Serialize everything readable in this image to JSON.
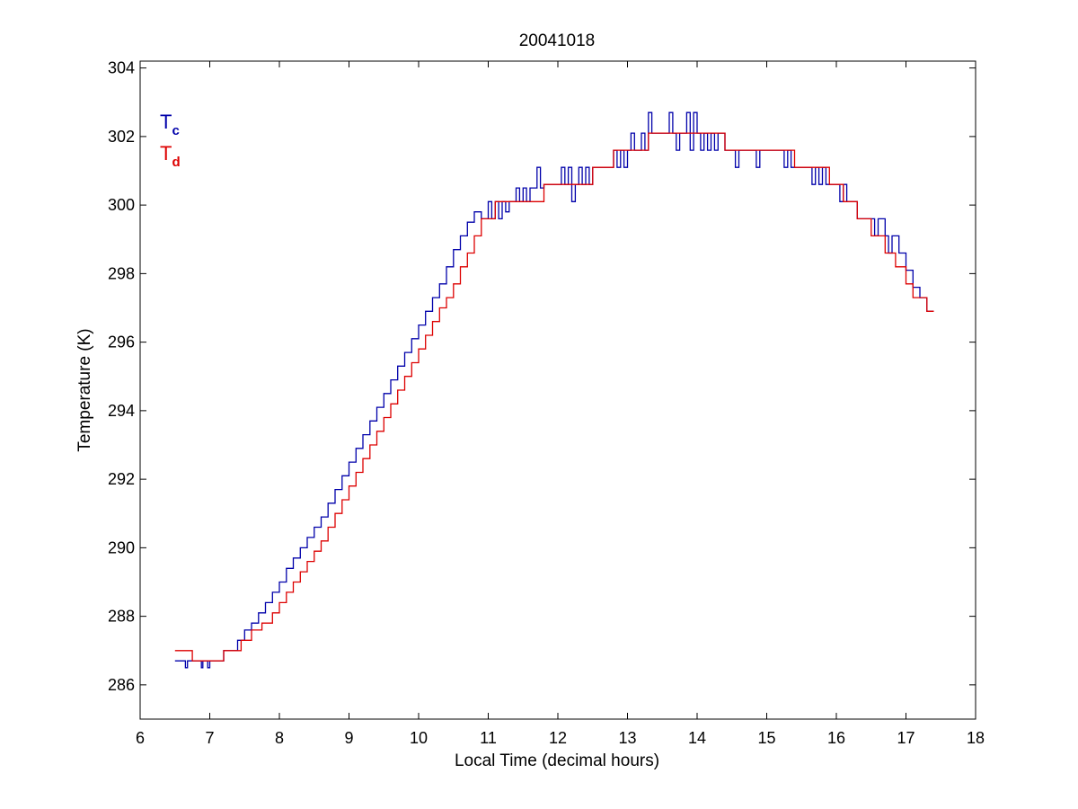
{
  "chart_data": {
    "type": "line",
    "title": "20041018",
    "xlabel": "Local Time (decimal hours)",
    "ylabel": "Temperature (K)",
    "xlim": [
      6,
      18
    ],
    "ylim": [
      285,
      304.2
    ],
    "xticks": [
      6,
      7,
      8,
      9,
      10,
      11,
      12,
      13,
      14,
      15,
      16,
      17,
      18
    ],
    "yticks": [
      286,
      288,
      290,
      292,
      294,
      296,
      298,
      300,
      302,
      304
    ],
    "xtick_labels": [
      "6",
      "7",
      "8",
      "9",
      "10",
      "11",
      "12",
      "13",
      "14",
      "15",
      "16",
      "17",
      "18"
    ],
    "ytick_labels": [
      "286",
      "288",
      "290",
      "292",
      "294",
      "296",
      "298",
      "300",
      "302",
      "304"
    ],
    "grid": false,
    "legend": {
      "placement": "top-left",
      "entries": [
        {
          "main": "T",
          "sub": "c",
          "color": "#0000aa"
        },
        {
          "main": "T",
          "sub": "d",
          "color": "#dd0000"
        }
      ]
    },
    "series": [
      {
        "legend_index": 0,
        "color": "#0000aa",
        "step": "post",
        "x": [
          6.5,
          6.65,
          6.68,
          6.72,
          6.88,
          6.9,
          6.95,
          6.97,
          7.0,
          7.2,
          7.3,
          7.4,
          7.5,
          7.6,
          7.7,
          7.8,
          7.9,
          8.0,
          8.1,
          8.2,
          8.3,
          8.4,
          8.5,
          8.6,
          8.7,
          8.8,
          8.9,
          9.0,
          9.1,
          9.2,
          9.3,
          9.4,
          9.5,
          9.6,
          9.7,
          9.8,
          9.9,
          10.0,
          10.1,
          10.2,
          10.3,
          10.4,
          10.5,
          10.6,
          10.7,
          10.8,
          10.9,
          11.0,
          11.05,
          11.1,
          11.15,
          11.2,
          11.25,
          11.3,
          11.4,
          11.45,
          11.5,
          11.55,
          11.6,
          11.7,
          11.75,
          11.8,
          12.0,
          12.05,
          12.1,
          12.15,
          12.2,
          12.25,
          12.3,
          12.35,
          12.4,
          12.45,
          12.5,
          12.7,
          12.8,
          12.85,
          12.9,
          12.95,
          13.0,
          13.05,
          13.1,
          13.2,
          13.25,
          13.3,
          13.35,
          13.4,
          13.5,
          13.6,
          13.65,
          13.7,
          13.75,
          13.85,
          13.9,
          13.95,
          14.0,
          14.05,
          14.1,
          14.15,
          14.2,
          14.25,
          14.3,
          14.4,
          14.5,
          14.55,
          14.6,
          14.8,
          14.85,
          14.9,
          15.2,
          15.25,
          15.3,
          15.35,
          15.4,
          15.6,
          15.65,
          15.7,
          15.75,
          15.8,
          15.85,
          15.9,
          16.0,
          16.05,
          16.1,
          16.15,
          16.2,
          16.3,
          16.5,
          16.55,
          16.6,
          16.7,
          16.75,
          16.8,
          16.9,
          17.0,
          17.1,
          17.2,
          17.3,
          17.4
        ],
        "y": [
          286.7,
          286.5,
          286.7,
          286.7,
          286.5,
          286.7,
          286.7,
          286.5,
          286.7,
          287.0,
          287.0,
          287.3,
          287.6,
          287.8,
          288.1,
          288.4,
          288.7,
          289.0,
          289.4,
          289.7,
          290.0,
          290.3,
          290.6,
          290.9,
          291.3,
          291.7,
          292.1,
          292.5,
          292.9,
          293.3,
          293.7,
          294.1,
          294.5,
          294.9,
          295.3,
          295.7,
          296.1,
          296.5,
          296.9,
          297.3,
          297.7,
          298.2,
          298.7,
          299.1,
          299.5,
          299.8,
          299.6,
          300.1,
          299.6,
          300.1,
          299.6,
          300.1,
          299.8,
          300.1,
          300.5,
          300.1,
          300.5,
          300.1,
          300.5,
          301.1,
          300.5,
          300.6,
          300.6,
          301.1,
          300.6,
          301.1,
          300.1,
          300.6,
          301.1,
          300.6,
          301.1,
          300.6,
          301.1,
          301.1,
          301.6,
          301.1,
          301.6,
          301.1,
          301.6,
          302.1,
          301.6,
          302.1,
          301.6,
          302.7,
          302.1,
          302.1,
          302.1,
          302.7,
          302.1,
          301.6,
          302.1,
          302.7,
          301.6,
          302.7,
          302.1,
          301.6,
          302.1,
          301.6,
          302.1,
          301.6,
          302.1,
          301.6,
          301.6,
          301.1,
          301.6,
          301.6,
          301.1,
          301.6,
          301.6,
          301.1,
          301.6,
          301.1,
          301.1,
          301.1,
          300.6,
          301.1,
          300.6,
          301.1,
          300.6,
          300.6,
          300.6,
          300.1,
          300.6,
          300.1,
          300.1,
          299.6,
          299.6,
          299.1,
          299.6,
          299.1,
          298.6,
          299.1,
          298.6,
          298.1,
          297.6,
          297.3,
          296.9,
          296.9
        ]
      },
      {
        "legend_index": 1,
        "color": "#dd0000",
        "step": "post",
        "x": [
          6.5,
          6.75,
          7.2,
          7.45,
          7.6,
          7.75,
          7.9,
          8.0,
          8.1,
          8.2,
          8.3,
          8.4,
          8.5,
          8.6,
          8.7,
          8.8,
          8.9,
          9.0,
          9.1,
          9.2,
          9.3,
          9.4,
          9.5,
          9.6,
          9.7,
          9.8,
          9.9,
          10.0,
          10.1,
          10.2,
          10.3,
          10.4,
          10.5,
          10.6,
          10.7,
          10.8,
          10.9,
          11.0,
          11.1,
          11.4,
          11.8,
          12.5,
          12.8,
          13.3,
          14.0,
          14.4,
          15.2,
          15.4,
          15.9,
          16.1,
          16.3,
          16.5,
          16.7,
          16.85,
          17.0,
          17.1,
          17.2,
          17.3,
          17.4
        ],
        "y": [
          287.0,
          286.7,
          287.0,
          287.3,
          287.6,
          287.8,
          288.1,
          288.4,
          288.7,
          289.0,
          289.3,
          289.6,
          289.9,
          290.2,
          290.6,
          291.0,
          291.4,
          291.8,
          292.2,
          292.6,
          293.0,
          293.4,
          293.8,
          294.2,
          294.6,
          295.0,
          295.4,
          295.8,
          296.2,
          296.6,
          297.0,
          297.3,
          297.7,
          298.2,
          298.6,
          299.1,
          299.6,
          299.6,
          300.1,
          300.1,
          300.6,
          301.1,
          301.6,
          302.1,
          302.1,
          301.6,
          301.6,
          301.1,
          300.6,
          300.1,
          299.6,
          299.1,
          298.6,
          298.2,
          297.7,
          297.3,
          297.3,
          296.9,
          296.9
        ]
      }
    ]
  }
}
